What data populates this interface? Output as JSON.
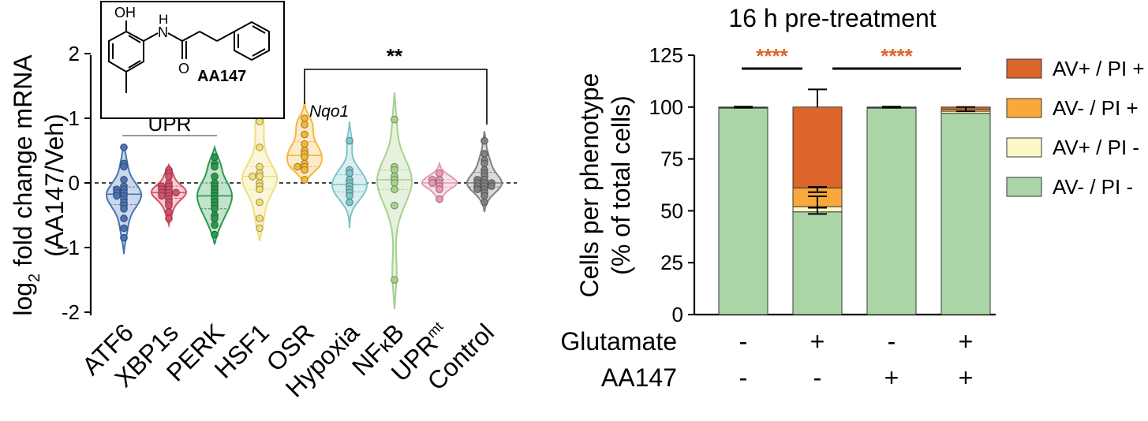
{
  "chart_data": [
    {
      "type": "violin",
      "ylabel_pre": "log",
      "ylabel_sub": "2",
      "ylabel_post": " fold change mRNA",
      "ylabel_line2": "(AA147/Veh)",
      "ylim": [
        -2,
        2
      ],
      "yticks": [
        2,
        1,
        0,
        -1,
        -2
      ],
      "yticks_labels": [
        "2",
        "1",
        "0",
        "−1",
        "-2"
      ],
      "reference_line": 0,
      "groups": [
        {
          "name": "ATF6",
          "color": "#4a74b5",
          "range": [
            -1.1,
            0.6
          ],
          "points": [
            0.55,
            0.3,
            0.25,
            0.05,
            -0.05,
            -0.1,
            -0.1,
            -0.15,
            -0.15,
            -0.2,
            -0.2,
            -0.25,
            -0.3,
            -0.35,
            -0.4,
            -0.55,
            -0.7,
            -0.85
          ]
        },
        {
          "name": "XBP1s",
          "color": "#d6516b",
          "range": [
            -0.65,
            0.28
          ],
          "points": [
            0.2,
            0.15,
            0.1,
            0.0,
            -0.05,
            -0.05,
            -0.1,
            -0.1,
            -0.15,
            -0.15,
            -0.15,
            -0.2,
            -0.2,
            -0.25,
            -0.3,
            -0.35,
            -0.45,
            -0.55
          ]
        },
        {
          "name": "PERK",
          "color": "#2a9a4c",
          "range": [
            -0.95,
            0.55
          ],
          "points": [
            0.4,
            0.3,
            0.25,
            0.1,
            0.0,
            -0.05,
            -0.1,
            -0.15,
            -0.2,
            -0.25,
            -0.3,
            -0.35,
            -0.4,
            -0.5,
            -0.55,
            -0.65,
            -0.8
          ]
        },
        {
          "name": "HSF1",
          "color": "#f0df7a",
          "range": [
            -0.9,
            1.3
          ],
          "points": [
            1.0,
            0.95,
            0.55,
            0.25,
            0.15,
            0.1,
            0.1,
            0.0,
            -0.05,
            -0.1,
            -0.3,
            -0.55,
            -0.7
          ]
        },
        {
          "name": "OSR",
          "color": "#f5b73a",
          "range": [
            0.0,
            1.25
          ],
          "points": [
            1.0,
            0.9,
            0.75,
            0.6,
            0.5,
            0.45,
            0.4,
            0.3,
            0.25,
            0.25,
            0.2,
            0.05
          ]
        },
        {
          "name": "Hypoxia",
          "color": "#7dc6c9",
          "range": [
            -0.7,
            0.95
          ],
          "points": [
            0.65,
            0.2,
            0.15,
            0.05,
            0.0,
            -0.05,
            -0.1,
            -0.15,
            -0.2,
            -0.3
          ]
        },
        {
          "name": "NFκB",
          "name_pre": "NF",
          "name_sub": "κ",
          "name_post": "B",
          "color": "#a7d18c",
          "range": [
            -1.95,
            1.4
          ],
          "points": [
            0.98,
            0.25,
            0.2,
            0.1,
            0.05,
            0.0,
            -0.1,
            -0.35,
            -1.5
          ]
        },
        {
          "name": "UPRmt",
          "name_pre": "UPR",
          "name_sup": "mt",
          "color": "#e79ab2",
          "range": [
            -0.3,
            0.3
          ],
          "points": [
            0.15,
            0.05,
            0.05,
            0.0,
            0.0,
            -0.05,
            -0.1,
            -0.25
          ]
        },
        {
          "name": "Control",
          "color": "#808080",
          "range": [
            -0.45,
            0.8
          ],
          "points": [
            0.65,
            0.45,
            0.35,
            0.3,
            0.2,
            0.15,
            0.1,
            0.05,
            0.05,
            0.0,
            0.0,
            0.0,
            -0.05,
            -0.05,
            -0.05,
            -0.1,
            -0.1,
            -0.15,
            -0.2,
            -0.3
          ]
        }
      ],
      "annotations": {
        "upr_bracket_label": "UPR",
        "nqo1_label": "Nqo1",
        "significance": "**"
      },
      "structure": {
        "label": "AA147",
        "oh": "OH",
        "nh": "H",
        "n": "N",
        "o": "O"
      }
    },
    {
      "type": "bar",
      "stacked": true,
      "title": "16 h pre-treatment",
      "ylabel": "Cells per phenotype",
      "ylabel_line2": "(% of total cells)",
      "ylim": [
        0,
        125
      ],
      "yticks": [
        0,
        25,
        50,
        75,
        100,
        125
      ],
      "categories": [
        "1",
        "2",
        "3",
        "4"
      ],
      "conditions": [
        {
          "name": "Glutamate",
          "values": [
            "-",
            "+",
            "-",
            "+"
          ]
        },
        {
          "name": "AA147",
          "values": [
            "-",
            "-",
            "+",
            "+"
          ]
        }
      ],
      "series": [
        {
          "name": "AV- / PI -",
          "color": "#aad6a7",
          "values": [
            99.5,
            49.5,
            99.5,
            97.0
          ]
        },
        {
          "name": "AV+ / PI -",
          "color": "#fdf7c7",
          "values": [
            0.2,
            2.5,
            0.2,
            1.0
          ]
        },
        {
          "name": "AV- / PI +",
          "color": "#f9a83b",
          "values": [
            0.1,
            9.0,
            0.1,
            1.0
          ]
        },
        {
          "name": "AV+ / PI +",
          "color": "#dc6529",
          "values": [
            0.2,
            39.0,
            0.2,
            1.0
          ]
        }
      ],
      "error_bars": [
        {
          "bar": 1,
          "center": 100,
          "upper": 108.5
        },
        {
          "bar": 1,
          "center": 61,
          "lower": 59,
          "upper": 61.5
        },
        {
          "bar": 1,
          "center": 54.5,
          "lower": 51.5,
          "upper": 57
        },
        {
          "bar": 1,
          "center": 51.5,
          "lower": 48.5
        },
        {
          "bar": 0,
          "center": 100,
          "lower": 99.7,
          "upper": 100.2
        },
        {
          "bar": 2,
          "center": 100,
          "lower": 99.7,
          "upper": 100.2
        },
        {
          "bar": 3,
          "center": 99,
          "lower": 98,
          "upper": 100
        }
      ],
      "significance": [
        {
          "label": "****",
          "from": 0,
          "to": 1,
          "color": "#dc6529"
        },
        {
          "label": "****",
          "from": 1,
          "to": 3,
          "color": "#dc6529"
        }
      ],
      "legend_position": "right"
    }
  ]
}
